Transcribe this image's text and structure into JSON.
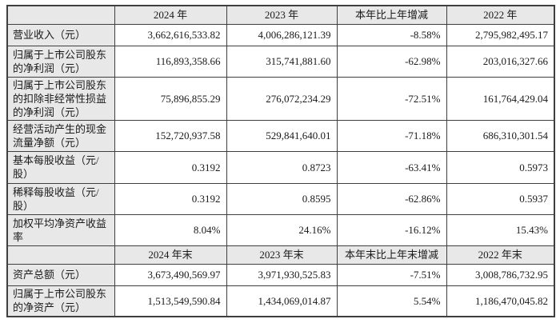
{
  "table": {
    "colors": {
      "header_bg": "#e8e8e8",
      "border": "#3f3f3f",
      "text": "#1a1a1a"
    },
    "sections": [
      {
        "header": [
          "",
          "2024 年",
          "2023 年",
          "本年比上年增减",
          "2022 年"
        ],
        "rows": [
          {
            "label": "营业收入（元）",
            "values": [
              "3,662,616,533.82",
              "4,006,286,121.39",
              "-8.58%",
              "2,795,982,495.17"
            ]
          },
          {
            "label": "归属于上市公司股东的净利润（元）",
            "values": [
              "116,893,358.66",
              "315,741,881.60",
              "-62.98%",
              "203,016,327.66"
            ]
          },
          {
            "label": "归属于上市公司股东的扣除非经常性损益的净利润（元）",
            "values": [
              "75,896,855.29",
              "276,072,234.29",
              "-72.51%",
              "161,764,429.04"
            ]
          },
          {
            "label": "经营活动产生的现金流量净额（元）",
            "values": [
              "152,720,937.58",
              "529,841,640.01",
              "-71.18%",
              "686,310,301.54"
            ]
          },
          {
            "label": "基本每股收益（元/股）",
            "values": [
              "0.3192",
              "0.8723",
              "-63.41%",
              "0.5973"
            ]
          },
          {
            "label": "稀释每股收益（元/股）",
            "values": [
              "0.3192",
              "0.8595",
              "-62.86%",
              "0.5937"
            ]
          },
          {
            "label": "加权平均净资产收益率",
            "values": [
              "8.04%",
              "24.16%",
              "-16.12%",
              "15.43%"
            ]
          }
        ]
      },
      {
        "header": [
          "",
          "2024 年末",
          "2023 年末",
          "本年末比上年末增减",
          "2022 年末"
        ],
        "rows": [
          {
            "label": "资产总额（元）",
            "values": [
              "3,673,490,569.97",
              "3,971,930,525.83",
              "-7.51%",
              "3,008,786,732.95"
            ]
          },
          {
            "label": "归属于上市公司股东的净资产（元）",
            "values": [
              "1,513,549,590.84",
              "1,434,069,014.87",
              "5.54%",
              "1,186,470,045.82"
            ]
          }
        ]
      }
    ]
  }
}
